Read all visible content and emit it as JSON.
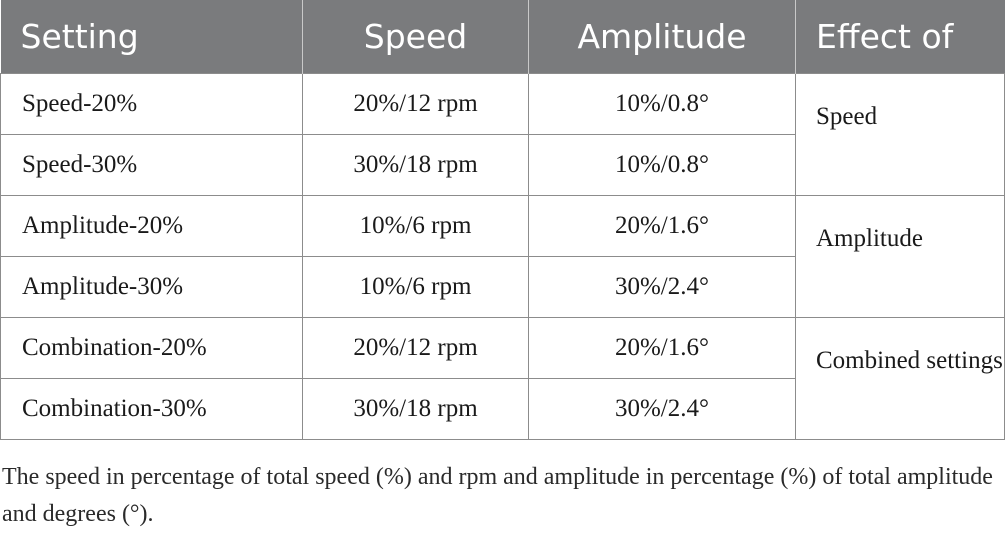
{
  "table": {
    "headers": [
      "Setting",
      "Speed",
      "Amplitude",
      "Effect of"
    ],
    "rows": [
      {
        "setting": "Speed-20%",
        "speed": "20%/12 rpm",
        "amplitude": "10%/0.8°"
      },
      {
        "setting": "Speed-30%",
        "speed": "30%/18 rpm",
        "amplitude": "10%/0.8°"
      },
      {
        "setting": "Amplitude-20%",
        "speed": "10%/6 rpm",
        "amplitude": "20%/1.6°"
      },
      {
        "setting": "Amplitude-30%",
        "speed": "10%/6 rpm",
        "amplitude": "30%/2.4°"
      },
      {
        "setting": "Combination-20%",
        "speed": "20%/12 rpm",
        "amplitude": "20%/1.6°"
      },
      {
        "setting": "Combination-30%",
        "speed": "30%/18 rpm",
        "amplitude": "30%/2.4°"
      }
    ],
    "effects": [
      "Speed",
      "Amplitude",
      "Combined settings"
    ]
  },
  "footnote": "The speed in percentage of total speed (%) and rpm and amplitude in percentage (%) of total amplitude and degrees (°)."
}
